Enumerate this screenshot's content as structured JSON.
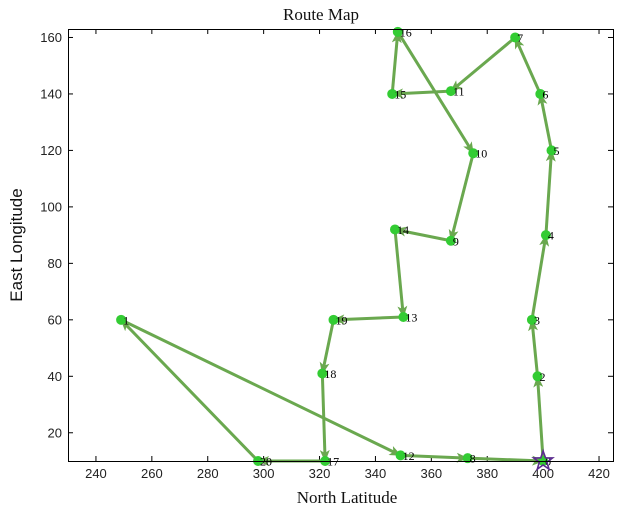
{
  "chart_data": {
    "type": "line",
    "title": "Route Map",
    "xlabel": "North Latitude",
    "ylabel": "East Longitude",
    "xlim": [
      230,
      425
    ],
    "ylim": [
      10,
      163
    ],
    "xticks": [
      240,
      260,
      280,
      300,
      320,
      340,
      360,
      380,
      400,
      420
    ],
    "yticks": [
      20,
      40,
      60,
      80,
      100,
      120,
      140,
      160
    ],
    "grid": false,
    "line_color": "#6aa84f",
    "point_color": "#33cc33",
    "start_marker_color": "#5b2c8f",
    "points": [
      {
        "label": "0",
        "x": 400,
        "y": 10
      },
      {
        "label": "1",
        "x": 249,
        "y": 60
      },
      {
        "label": "2",
        "x": 398,
        "y": 40
      },
      {
        "label": "3",
        "x": 396,
        "y": 60
      },
      {
        "label": "4",
        "x": 401,
        "y": 90
      },
      {
        "label": "5",
        "x": 403,
        "y": 120
      },
      {
        "label": "6",
        "x": 399,
        "y": 140
      },
      {
        "label": "7",
        "x": 390,
        "y": 160
      },
      {
        "label": "8",
        "x": 373,
        "y": 11
      },
      {
        "label": "9",
        "x": 367,
        "y": 88
      },
      {
        "label": "10",
        "x": 375,
        "y": 119
      },
      {
        "label": "11",
        "x": 367,
        "y": 141
      },
      {
        "label": "12",
        "x": 349,
        "y": 12
      },
      {
        "label": "13",
        "x": 350,
        "y": 61
      },
      {
        "label": "14",
        "x": 347,
        "y": 92
      },
      {
        "label": "15",
        "x": 346,
        "y": 140
      },
      {
        "label": "16",
        "x": 348,
        "y": 162
      },
      {
        "label": "17",
        "x": 322,
        "y": 10
      },
      {
        "label": "18",
        "x": 321,
        "y": 41
      },
      {
        "label": "19",
        "x": 325,
        "y": 60
      },
      {
        "label": "20",
        "x": 298,
        "y": 10
      }
    ],
    "route": [
      0,
      2,
      3,
      4,
      5,
      6,
      7,
      11,
      15,
      16,
      10,
      9,
      14,
      13,
      19,
      18,
      17,
      20,
      1,
      12,
      8,
      0
    ]
  }
}
